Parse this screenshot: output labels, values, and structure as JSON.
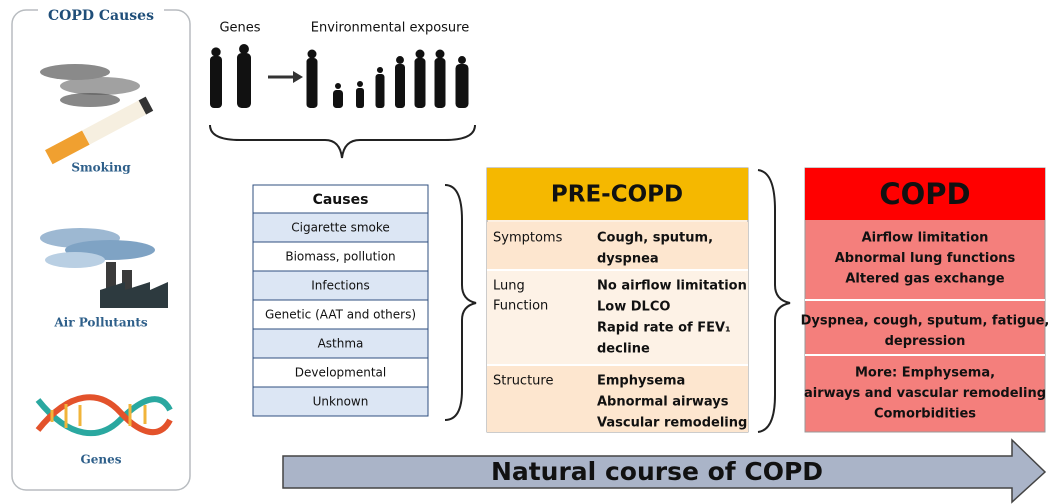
{
  "causes_panel": {
    "title": "COPD Causes",
    "items": [
      "Smoking",
      "Air Pollutants",
      "Genes"
    ]
  },
  "timeline": {
    "labels": [
      "Genes",
      "Environmental exposure"
    ]
  },
  "causes_table": {
    "header": "Causes",
    "rows": [
      "Cigarette smoke",
      "Biomass, pollution",
      "Infections",
      "Genetic (AAT and others)",
      "Asthma",
      "Developmental",
      "Unknown"
    ]
  },
  "pre_copd": {
    "title": "PRE-COPD",
    "rows": [
      {
        "label": [
          "Symptoms"
        ],
        "lines": [
          "Cough, sputum,",
          "dyspnea"
        ]
      },
      {
        "label": [
          "Lung",
          "Function"
        ],
        "lines": [
          "No airflow limitation",
          "Low DLCO",
          "Rapid rate of FEV₁",
          "decline"
        ]
      },
      {
        "label": [
          "Structure"
        ],
        "lines": [
          "Emphysema",
          "Abnormal airways",
          "Vascular remodeling"
        ]
      }
    ]
  },
  "copd": {
    "title": "COPD",
    "sections": [
      [
        "Airflow limitation",
        "Abnormal lung functions",
        "Altered gas exchange"
      ],
      [
        "Dyspnea, cough, sputum, fatigue,",
        "depression"
      ],
      [
        "More: Emphysema,",
        "airways and vascular remodeling",
        "Comorbidities"
      ]
    ]
  },
  "arrow_label": "Natural course of COPD"
}
